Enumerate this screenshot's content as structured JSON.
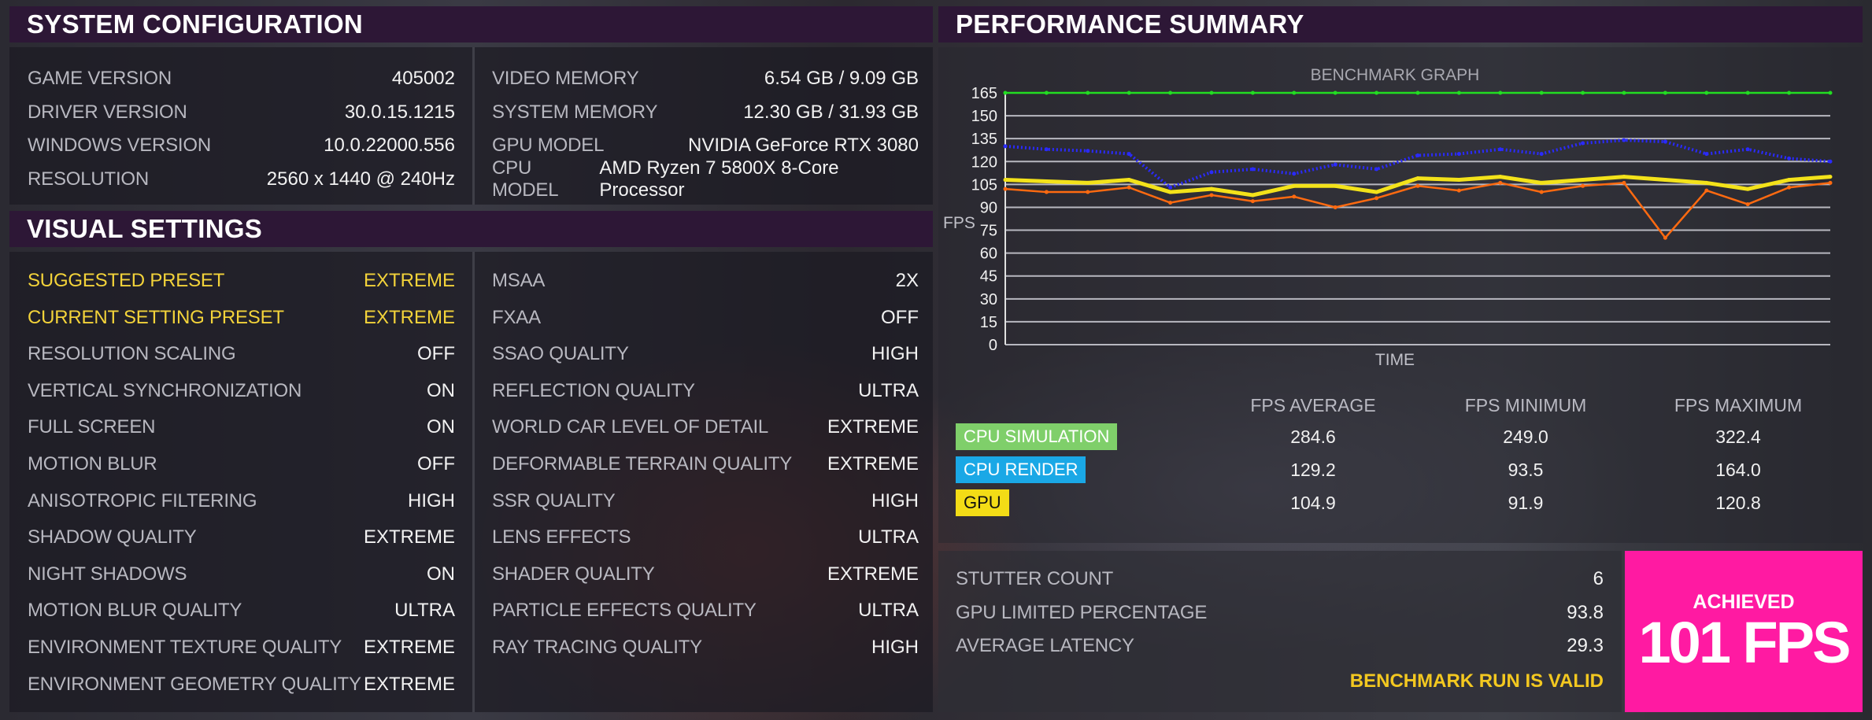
{
  "system": {
    "title": "SYSTEM CONFIGURATION",
    "left": [
      {
        "label": "GAME VERSION",
        "value": "405002"
      },
      {
        "label": "DRIVER VERSION",
        "value": "30.0.15.1215"
      },
      {
        "label": "WINDOWS VERSION",
        "value": "10.0.22000.556"
      },
      {
        "label": "RESOLUTION",
        "value": "2560 x 1440 @ 240Hz"
      }
    ],
    "right": [
      {
        "label": "VIDEO MEMORY",
        "value": "6.54 GB / 9.09 GB"
      },
      {
        "label": "SYSTEM MEMORY",
        "value": "12.30 GB / 31.93 GB"
      },
      {
        "label": "GPU MODEL",
        "value": "NVIDIA GeForce RTX 3080"
      },
      {
        "label": "CPU MODEL",
        "value": "AMD Ryzen 7 5800X 8-Core Processor"
      }
    ]
  },
  "visual": {
    "title": "VISUAL SETTINGS",
    "left": [
      {
        "label": "SUGGESTED PRESET",
        "value": "EXTREME",
        "highlight": true
      },
      {
        "label": "CURRENT SETTING PRESET",
        "value": "EXTREME",
        "highlight": true
      },
      {
        "label": "RESOLUTION SCALING",
        "value": "OFF"
      },
      {
        "label": "VERTICAL SYNCHRONIZATION",
        "value": "ON"
      },
      {
        "label": "FULL SCREEN",
        "value": "ON"
      },
      {
        "label": "MOTION BLUR",
        "value": "OFF"
      },
      {
        "label": "ANISOTROPIC FILTERING",
        "value": "HIGH"
      },
      {
        "label": "SHADOW QUALITY",
        "value": "EXTREME"
      },
      {
        "label": "NIGHT SHADOWS",
        "value": "ON"
      },
      {
        "label": "MOTION BLUR QUALITY",
        "value": "ULTRA"
      },
      {
        "label": "ENVIRONMENT TEXTURE QUALITY",
        "value": "EXTREME"
      },
      {
        "label": "ENVIRONMENT GEOMETRY QUALITY",
        "value": "EXTREME"
      }
    ],
    "right": [
      {
        "label": "MSAA",
        "value": "2X"
      },
      {
        "label": "FXAA",
        "value": "OFF"
      },
      {
        "label": "SSAO QUALITY",
        "value": "HIGH"
      },
      {
        "label": "REFLECTION QUALITY",
        "value": "ULTRA"
      },
      {
        "label": "WORLD CAR LEVEL OF DETAIL",
        "value": "EXTREME"
      },
      {
        "label": "DEFORMABLE TERRAIN QUALITY",
        "value": "EXTREME"
      },
      {
        "label": "SSR QUALITY",
        "value": "HIGH"
      },
      {
        "label": "LENS EFFECTS",
        "value": "ULTRA"
      },
      {
        "label": "SHADER QUALITY",
        "value": "EXTREME"
      },
      {
        "label": "PARTICLE EFFECTS QUALITY",
        "value": "ULTRA"
      },
      {
        "label": "RAY TRACING QUALITY",
        "value": "HIGH"
      }
    ]
  },
  "performance": {
    "title": "PERFORMANCE SUMMARY",
    "table_headers": [
      "FPS AVERAGE",
      "FPS MINIMUM",
      "FPS MAXIMUM"
    ],
    "rows": [
      {
        "name": "CPU SIMULATION",
        "color": "#7fcf6a",
        "avg": "284.6",
        "min": "249.0",
        "max": "322.4"
      },
      {
        "name": "CPU RENDER",
        "color": "#1aa8e6",
        "avg": "129.2",
        "min": "93.5",
        "max": "164.0"
      },
      {
        "name": "GPU",
        "color": "#f3dc16",
        "avg": "104.9",
        "min": "91.9",
        "max": "120.8"
      }
    ],
    "stats": [
      {
        "label": "STUTTER COUNT",
        "value": "6"
      },
      {
        "label": "GPU LIMITED PERCENTAGE",
        "value": "93.8"
      },
      {
        "label": "AVERAGE LATENCY",
        "value": "29.3"
      }
    ],
    "valid_text": "BENCHMARK RUN IS VALID",
    "achieved_label": "ACHIEVED",
    "achieved_value": "101 FPS",
    "accent": "#ff1aa2"
  },
  "chart_data": {
    "type": "line",
    "title": "BENCHMARK GRAPH",
    "xlabel": "TIME",
    "ylabel": "FPS",
    "yticks": [
      0,
      15,
      30,
      45,
      60,
      75,
      90,
      105,
      120,
      135,
      150,
      165
    ],
    "ylim": [
      0,
      165
    ],
    "grid": true,
    "x": [
      0,
      5,
      10,
      15,
      20,
      25,
      30,
      35,
      40,
      45,
      50,
      55,
      60,
      65,
      70,
      75,
      80,
      85,
      90,
      95,
      100
    ],
    "series": [
      {
        "color": "#22dd22",
        "values": [
          165,
          165,
          165,
          165,
          165,
          165,
          165,
          165,
          165,
          165,
          165,
          165,
          165,
          165,
          165,
          165,
          165,
          165,
          165,
          165,
          165
        ]
      },
      {
        "color": "#2a2aff",
        "values": [
          130,
          128,
          127,
          125,
          103,
          113,
          115,
          112,
          118,
          115,
          124,
          125,
          128,
          125,
          132,
          134,
          133,
          125,
          128,
          122,
          120
        ]
      },
      {
        "color": "#f3e21a",
        "values": [
          108,
          107,
          106,
          108,
          100,
          102,
          98,
          104,
          104,
          100,
          109,
          108,
          110,
          106,
          108,
          110,
          108,
          106,
          102,
          108,
          110
        ]
      },
      {
        "color": "#ff6a10",
        "values": [
          102,
          100,
          100,
          103,
          93,
          98,
          94,
          97,
          90,
          96,
          104,
          101,
          106,
          100,
          104,
          106,
          70,
          101,
          92,
          103,
          106
        ]
      }
    ]
  }
}
